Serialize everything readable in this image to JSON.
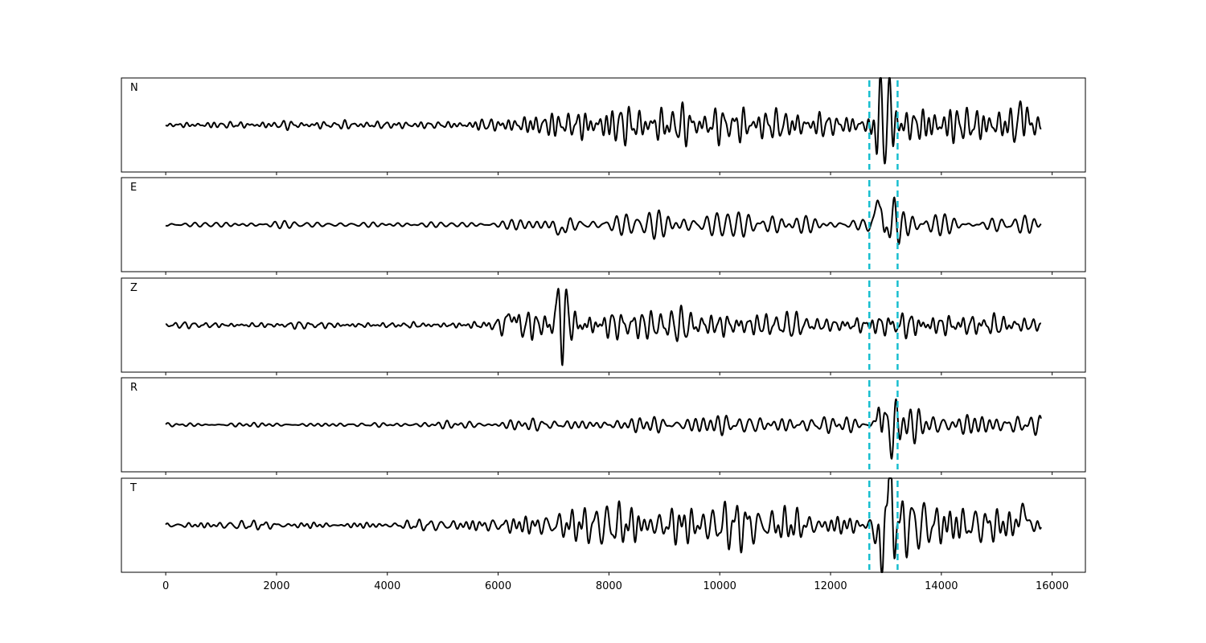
{
  "chart_data": {
    "type": "line",
    "title": "",
    "xlabel": "",
    "ylabel": "",
    "xlim": [
      -800,
      16600
    ],
    "x_ticks": [
      0,
      2000,
      4000,
      6000,
      8000,
      10000,
      12000,
      14000,
      16000
    ],
    "x_tick_labels": [
      "0",
      "2000",
      "4000",
      "6000",
      "8000",
      "10000",
      "12000",
      "14000",
      "16000"
    ],
    "grid": false,
    "sample_range": [
      0,
      15800
    ],
    "markers": {
      "style": "dashed",
      "color": "#17becf",
      "x": [
        12700,
        13210
      ]
    },
    "trace_color": "#000000",
    "series": [
      {
        "name": "N",
        "ylim": [
          -1.15,
          1.15
        ],
        "envelope": [
          [
            0,
            0.06
          ],
          [
            2000,
            0.08
          ],
          [
            5000,
            0.07
          ],
          [
            6000,
            0.15
          ],
          [
            6500,
            0.25
          ],
          [
            7000,
            0.3
          ],
          [
            8000,
            0.4
          ],
          [
            9000,
            0.38
          ],
          [
            10000,
            0.35
          ],
          [
            11000,
            0.32
          ],
          [
            12000,
            0.25
          ],
          [
            12600,
            0.2
          ],
          [
            13000,
            0.9
          ],
          [
            13300,
            0.4
          ],
          [
            14000,
            0.45
          ],
          [
            15000,
            0.35
          ],
          [
            15500,
            0.45
          ],
          [
            15800,
            0.3
          ]
        ],
        "peaks": [
          [
            12800,
            -0.28,
            40
          ],
          [
            12910,
            0.88,
            35
          ],
          [
            12970,
            -0.92,
            35
          ],
          [
            13040,
            0.78,
            35
          ],
          [
            15480,
            0.35,
            40
          ]
        ]
      },
      {
        "name": "E",
        "ylim": [
          -1.15,
          1.15
        ],
        "envelope": [
          [
            0,
            0.05
          ],
          [
            2000,
            0.06
          ],
          [
            5000,
            0.05
          ],
          [
            6000,
            0.1
          ],
          [
            6500,
            0.15
          ],
          [
            7000,
            0.25
          ],
          [
            8000,
            0.22
          ],
          [
            9000,
            0.25
          ],
          [
            10000,
            0.25
          ],
          [
            11000,
            0.22
          ],
          [
            12000,
            0.2
          ],
          [
            12600,
            0.2
          ],
          [
            13000,
            0.9
          ],
          [
            13300,
            0.3
          ],
          [
            14000,
            0.25
          ],
          [
            15000,
            0.25
          ],
          [
            15800,
            0.2
          ]
        ],
        "peaks": [
          [
            12860,
            0.62,
            35
          ],
          [
            12920,
            0.72,
            30
          ],
          [
            12980,
            -1.0,
            35
          ],
          [
            13060,
            0.5,
            35
          ],
          [
            7120,
            -0.25,
            45
          ]
        ]
      },
      {
        "name": "Z",
        "ylim": [
          -1.15,
          1.15
        ],
        "envelope": [
          [
            0,
            0.05
          ],
          [
            3000,
            0.07
          ],
          [
            5000,
            0.07
          ],
          [
            6000,
            0.15
          ],
          [
            6300,
            0.35
          ],
          [
            6800,
            0.3
          ],
          [
            7100,
            0.5
          ],
          [
            7300,
            0.4
          ],
          [
            8000,
            0.3
          ],
          [
            9000,
            0.28
          ],
          [
            10000,
            0.3
          ],
          [
            11000,
            0.25
          ],
          [
            12000,
            0.15
          ],
          [
            13000,
            0.3
          ],
          [
            14000,
            0.3
          ],
          [
            15000,
            0.25
          ],
          [
            15800,
            0.15
          ]
        ],
        "peaks": [
          [
            7100,
            0.92,
            40
          ],
          [
            7160,
            -1.0,
            40
          ],
          [
            7220,
            0.7,
            40
          ],
          [
            6240,
            0.35,
            40
          ]
        ]
      },
      {
        "name": "R",
        "ylim": [
          -1.15,
          1.15
        ],
        "envelope": [
          [
            0,
            0.04
          ],
          [
            3000,
            0.04
          ],
          [
            6000,
            0.07
          ],
          [
            7000,
            0.15
          ],
          [
            8000,
            0.15
          ],
          [
            9000,
            0.18
          ],
          [
            10000,
            0.18
          ],
          [
            11000,
            0.17
          ],
          [
            12000,
            0.15
          ],
          [
            12600,
            0.2
          ],
          [
            13000,
            0.75
          ],
          [
            13300,
            0.35
          ],
          [
            14000,
            0.3
          ],
          [
            15000,
            0.25
          ],
          [
            15800,
            0.2
          ]
        ],
        "peaks": [
          [
            12870,
            0.55,
            30
          ],
          [
            12930,
            -0.8,
            30
          ],
          [
            12960,
            1.0,
            30
          ],
          [
            13040,
            -0.5,
            35
          ]
        ]
      },
      {
        "name": "T",
        "ylim": [
          -1.15,
          1.15
        ],
        "envelope": [
          [
            0,
            0.07
          ],
          [
            3000,
            0.08
          ],
          [
            5000,
            0.09
          ],
          [
            6000,
            0.2
          ],
          [
            6800,
            0.28
          ],
          [
            7300,
            0.38
          ],
          [
            8000,
            0.45
          ],
          [
            9000,
            0.45
          ],
          [
            10000,
            0.45
          ],
          [
            11000,
            0.45
          ],
          [
            12000,
            0.3
          ],
          [
            12600,
            0.2
          ],
          [
            13000,
            0.95
          ],
          [
            13300,
            0.5
          ],
          [
            14000,
            0.45
          ],
          [
            14500,
            0.55
          ],
          [
            15000,
            0.4
          ],
          [
            15800,
            0.4
          ]
        ],
        "peaks": [
          [
            12850,
            -0.4,
            35
          ],
          [
            12930,
            -1.0,
            30
          ],
          [
            13010,
            0.9,
            35
          ],
          [
            13080,
            0.6,
            35
          ],
          [
            15480,
            0.5,
            40
          ]
        ]
      }
    ]
  }
}
